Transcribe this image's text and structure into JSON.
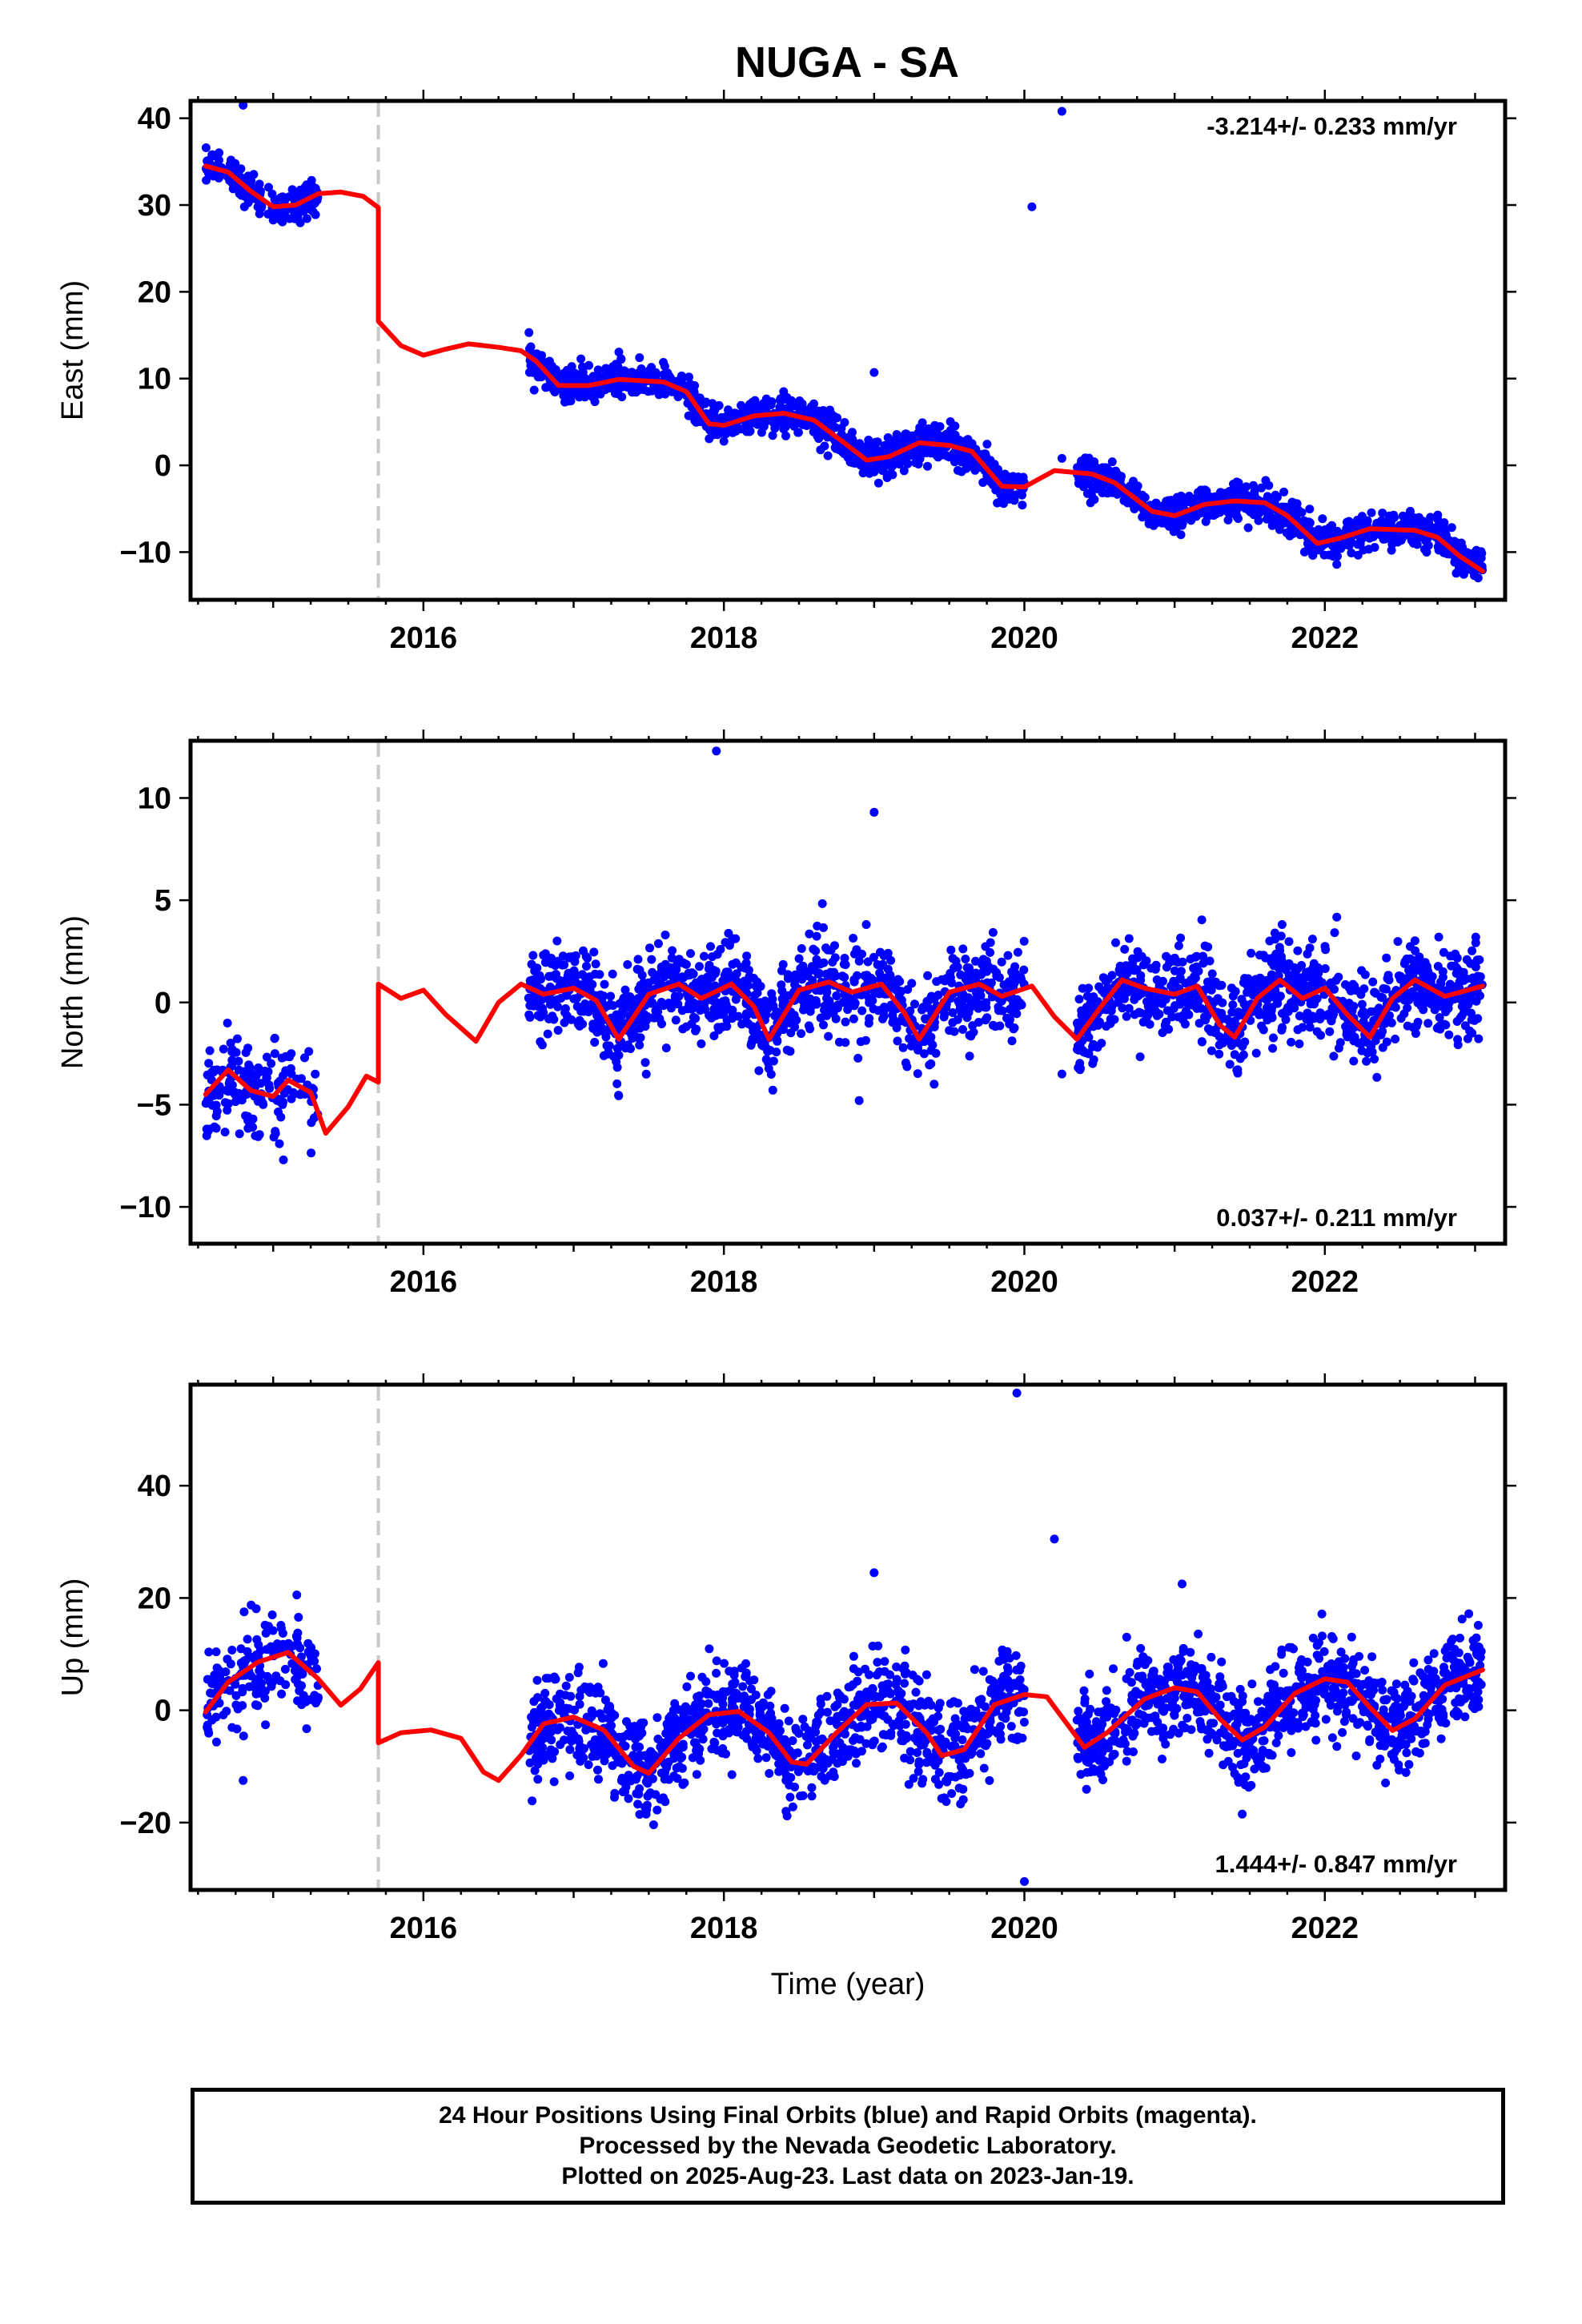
{
  "title": "NUGA - SA",
  "footer": {
    "line1": "24 Hour Positions Using Final Orbits (blue) and Rapid Orbits (magenta).",
    "line2": "Processed by the Nevada Geodetic Laboratory.",
    "line3": "Plotted on 2025-Aug-23. Last data on 2023-Jan-19."
  },
  "colors": {
    "points": "#0000ff",
    "fit": "#ff0000",
    "break_line": "#c8c8c8",
    "frame": "#000000"
  },
  "chart_data": [
    {
      "type": "scatter",
      "panel": "east",
      "ylabel": "East (mm)",
      "xlabel": "",
      "rate_text": "-3.214+/- 0.233 mm/yr",
      "rate_position": "top-right",
      "xlim": [
        2014.45,
        2023.2
      ],
      "ylim": [
        -15.5,
        42
      ],
      "xticks": [
        2016,
        2018,
        2020,
        2022
      ],
      "yticks": [
        -10,
        0,
        10,
        20,
        30,
        40
      ],
      "break_at": 2015.7,
      "segments": [
        {
          "start": 2014.55,
          "end": 2015.3,
          "density": 170
        },
        {
          "start": 2016.7,
          "end": 2020.0,
          "density": 1080
        },
        {
          "start": 2020.35,
          "end": 2023.05,
          "density": 920
        }
      ],
      "trend": {
        "rate": -3.214,
        "amp1": 0.7,
        "amp2": 1.2,
        "noise": 1.0
      },
      "fit": [
        [
          2014.55,
          34.5
        ],
        [
          2014.7,
          33.8
        ],
        [
          2014.85,
          31.6
        ],
        [
          2015.0,
          29.8
        ],
        [
          2015.15,
          30.0
        ],
        [
          2015.3,
          31.3
        ],
        [
          2015.45,
          31.5
        ],
        [
          2015.6,
          31.0
        ],
        [
          2015.7,
          29.7
        ],
        [
          2015.7,
          16.6
        ],
        [
          2015.85,
          13.8
        ],
        [
          2016.0,
          12.7
        ],
        [
          2016.15,
          13.4
        ],
        [
          2016.3,
          14.0
        ],
        [
          2016.5,
          13.6
        ],
        [
          2016.65,
          13.2
        ],
        [
          2016.75,
          12.0
        ],
        [
          2016.9,
          9.2
        ],
        [
          2017.1,
          9.2
        ],
        [
          2017.3,
          9.9
        ],
        [
          2017.6,
          9.6
        ],
        [
          2017.75,
          8.5
        ],
        [
          2017.9,
          4.8
        ],
        [
          2018.0,
          4.6
        ],
        [
          2018.2,
          5.7
        ],
        [
          2018.4,
          6.0
        ],
        [
          2018.6,
          5.2
        ],
        [
          2018.8,
          2.6
        ],
        [
          2018.95,
          0.6
        ],
        [
          2019.1,
          1.0
        ],
        [
          2019.3,
          2.6
        ],
        [
          2019.5,
          2.3
        ],
        [
          2019.65,
          1.6
        ],
        [
          2019.85,
          -2.4
        ],
        [
          2020.0,
          -2.5
        ],
        [
          2020.2,
          -0.6
        ],
        [
          2020.45,
          -1.0
        ],
        [
          2020.6,
          -2.0
        ],
        [
          2020.85,
          -5.3
        ],
        [
          2021.0,
          -5.8
        ],
        [
          2021.2,
          -4.5
        ],
        [
          2021.4,
          -4.1
        ],
        [
          2021.6,
          -4.3
        ],
        [
          2021.75,
          -5.8
        ],
        [
          2021.95,
          -9.0
        ],
        [
          2022.1,
          -8.4
        ],
        [
          2022.3,
          -7.3
        ],
        [
          2022.6,
          -7.5
        ],
        [
          2022.75,
          -8.3
        ],
        [
          2022.9,
          -10.5
        ],
        [
          2023.05,
          -12.2
        ]
      ],
      "outliers": [
        [
          2014.8,
          41.5
        ],
        [
          2019.0,
          10.7
        ],
        [
          2020.05,
          29.8
        ],
        [
          2020.25,
          40.8
        ],
        [
          2020.25,
          0.8
        ]
      ]
    },
    {
      "type": "scatter",
      "panel": "north",
      "ylabel": "North (mm)",
      "xlabel": "",
      "rate_text": "0.037+/- 0.211 mm/yr",
      "rate_position": "bottom-right",
      "xlim": [
        2014.45,
        2023.2
      ],
      "ylim": [
        -11.8,
        12.8
      ],
      "xticks": [
        2016,
        2018,
        2020,
        2022
      ],
      "yticks": [
        -10,
        -5,
        0,
        5,
        10
      ],
      "break_at": 2015.7,
      "segments": [
        {
          "start": 2014.55,
          "end": 2015.3,
          "density": 170
        },
        {
          "start": 2016.7,
          "end": 2020.0,
          "density": 1080
        },
        {
          "start": 2020.35,
          "end": 2023.05,
          "density": 920
        }
      ],
      "trend": {
        "rate": 0.037,
        "amp1": 1.3,
        "amp2": 0.6,
        "noise": 1.1
      },
      "fit": [
        [
          2014.55,
          -4.5
        ],
        [
          2014.7,
          -3.3
        ],
        [
          2014.85,
          -4.3
        ],
        [
          2015.0,
          -4.6
        ],
        [
          2015.1,
          -3.8
        ],
        [
          2015.25,
          -4.4
        ],
        [
          2015.35,
          -6.4
        ],
        [
          2015.5,
          -5.1
        ],
        [
          2015.62,
          -3.6
        ],
        [
          2015.7,
          -3.9
        ],
        [
          2015.7,
          0.9
        ],
        [
          2015.85,
          0.2
        ],
        [
          2016.0,
          0.6
        ],
        [
          2016.15,
          -0.6
        ],
        [
          2016.35,
          -1.9
        ],
        [
          2016.5,
          0.0
        ],
        [
          2016.65,
          0.9
        ],
        [
          2016.8,
          0.4
        ],
        [
          2017.0,
          0.7
        ],
        [
          2017.15,
          0.1
        ],
        [
          2017.3,
          -1.8
        ],
        [
          2017.5,
          0.4
        ],
        [
          2017.7,
          0.9
        ],
        [
          2017.85,
          0.2
        ],
        [
          2018.05,
          0.9
        ],
        [
          2018.2,
          -0.2
        ],
        [
          2018.3,
          -1.8
        ],
        [
          2018.5,
          0.6
        ],
        [
          2018.7,
          1.0
        ],
        [
          2018.85,
          0.5
        ],
        [
          2019.05,
          0.9
        ],
        [
          2019.2,
          -0.5
        ],
        [
          2019.3,
          -1.8
        ],
        [
          2019.5,
          0.5
        ],
        [
          2019.7,
          0.9
        ],
        [
          2019.85,
          0.3
        ],
        [
          2020.05,
          0.8
        ],
        [
          2020.2,
          -0.7
        ],
        [
          2020.35,
          -1.8
        ],
        [
          2020.5,
          -0.3
        ],
        [
          2020.65,
          1.1
        ],
        [
          2020.8,
          0.7
        ],
        [
          2021.0,
          0.4
        ],
        [
          2021.15,
          0.8
        ],
        [
          2021.3,
          -1.1
        ],
        [
          2021.4,
          -1.7
        ],
        [
          2021.55,
          0.2
        ],
        [
          2021.7,
          1.1
        ],
        [
          2021.85,
          0.2
        ],
        [
          2022.0,
          0.7
        ],
        [
          2022.15,
          -0.6
        ],
        [
          2022.3,
          -1.7
        ],
        [
          2022.45,
          0.2
        ],
        [
          2022.6,
          1.1
        ],
        [
          2022.8,
          0.3
        ],
        [
          2023.05,
          0.8
        ]
      ],
      "outliers": [
        [
          2017.95,
          12.3
        ],
        [
          2019.0,
          9.3
        ],
        [
          2018.9,
          -4.8
        ],
        [
          2020.25,
          -3.5
        ]
      ]
    },
    {
      "type": "scatter",
      "panel": "up",
      "ylabel": "Up (mm)",
      "xlabel": "Time (year)",
      "rate_text": "1.444+/- 0.847 mm/yr",
      "rate_position": "bottom-right",
      "xlim": [
        2014.45,
        2023.2
      ],
      "ylim": [
        -32,
        58
      ],
      "xticks": [
        2016,
        2018,
        2020,
        2022
      ],
      "yticks": [
        -20,
        0,
        20,
        40
      ],
      "break_at": 2015.7,
      "segments": [
        {
          "start": 2014.55,
          "end": 2015.3,
          "density": 170
        },
        {
          "start": 2016.7,
          "end": 2020.0,
          "density": 1080
        },
        {
          "start": 2020.35,
          "end": 2023.05,
          "density": 920
        }
      ],
      "trend": {
        "rate": 1.444,
        "amp1": 5.5,
        "amp2": 1.5,
        "noise": 4.2
      },
      "fit": [
        [
          2014.55,
          -0.3
        ],
        [
          2014.7,
          5.0
        ],
        [
          2014.9,
          8.6
        ],
        [
          2015.1,
          10.3
        ],
        [
          2015.3,
          5.6
        ],
        [
          2015.45,
          0.9
        ],
        [
          2015.58,
          3.8
        ],
        [
          2015.7,
          8.5
        ],
        [
          2015.7,
          -5.8
        ],
        [
          2015.85,
          -4.0
        ],
        [
          2016.05,
          -3.5
        ],
        [
          2016.25,
          -5.0
        ],
        [
          2016.4,
          -11.0
        ],
        [
          2016.5,
          -12.5
        ],
        [
          2016.65,
          -8.0
        ],
        [
          2016.8,
          -2.4
        ],
        [
          2017.0,
          -1.2
        ],
        [
          2017.2,
          -3.5
        ],
        [
          2017.4,
          -10.0
        ],
        [
          2017.5,
          -11.2
        ],
        [
          2017.7,
          -5.0
        ],
        [
          2017.9,
          -0.8
        ],
        [
          2018.1,
          -0.2
        ],
        [
          2018.3,
          -4.0
        ],
        [
          2018.45,
          -9.2
        ],
        [
          2018.55,
          -9.6
        ],
        [
          2018.75,
          -4.0
        ],
        [
          2018.95,
          1.0
        ],
        [
          2019.15,
          1.3
        ],
        [
          2019.35,
          -4.0
        ],
        [
          2019.45,
          -8.1
        ],
        [
          2019.6,
          -7.0
        ],
        [
          2019.8,
          1.0
        ],
        [
          2020.0,
          2.8
        ],
        [
          2020.15,
          2.4
        ],
        [
          2020.3,
          -3.0
        ],
        [
          2020.4,
          -6.6
        ],
        [
          2020.55,
          -4.0
        ],
        [
          2020.8,
          2.0
        ],
        [
          2021.0,
          4.0
        ],
        [
          2021.15,
          3.3
        ],
        [
          2021.3,
          -1.5
        ],
        [
          2021.45,
          -5.3
        ],
        [
          2021.6,
          -3.0
        ],
        [
          2021.8,
          3.0
        ],
        [
          2022.0,
          5.6
        ],
        [
          2022.15,
          5.0
        ],
        [
          2022.3,
          0.5
        ],
        [
          2022.45,
          -3.6
        ],
        [
          2022.6,
          -1.5
        ],
        [
          2022.8,
          4.5
        ],
        [
          2023.05,
          7.2
        ]
      ],
      "outliers": [
        [
          2019.95,
          56.5
        ],
        [
          2020.2,
          30.5
        ],
        [
          2020.0,
          -30.5
        ],
        [
          2019.0,
          24.5
        ],
        [
          2014.8,
          -12.5
        ],
        [
          2021.05,
          22.5
        ],
        [
          2021.45,
          -18.5
        ]
      ]
    }
  ]
}
